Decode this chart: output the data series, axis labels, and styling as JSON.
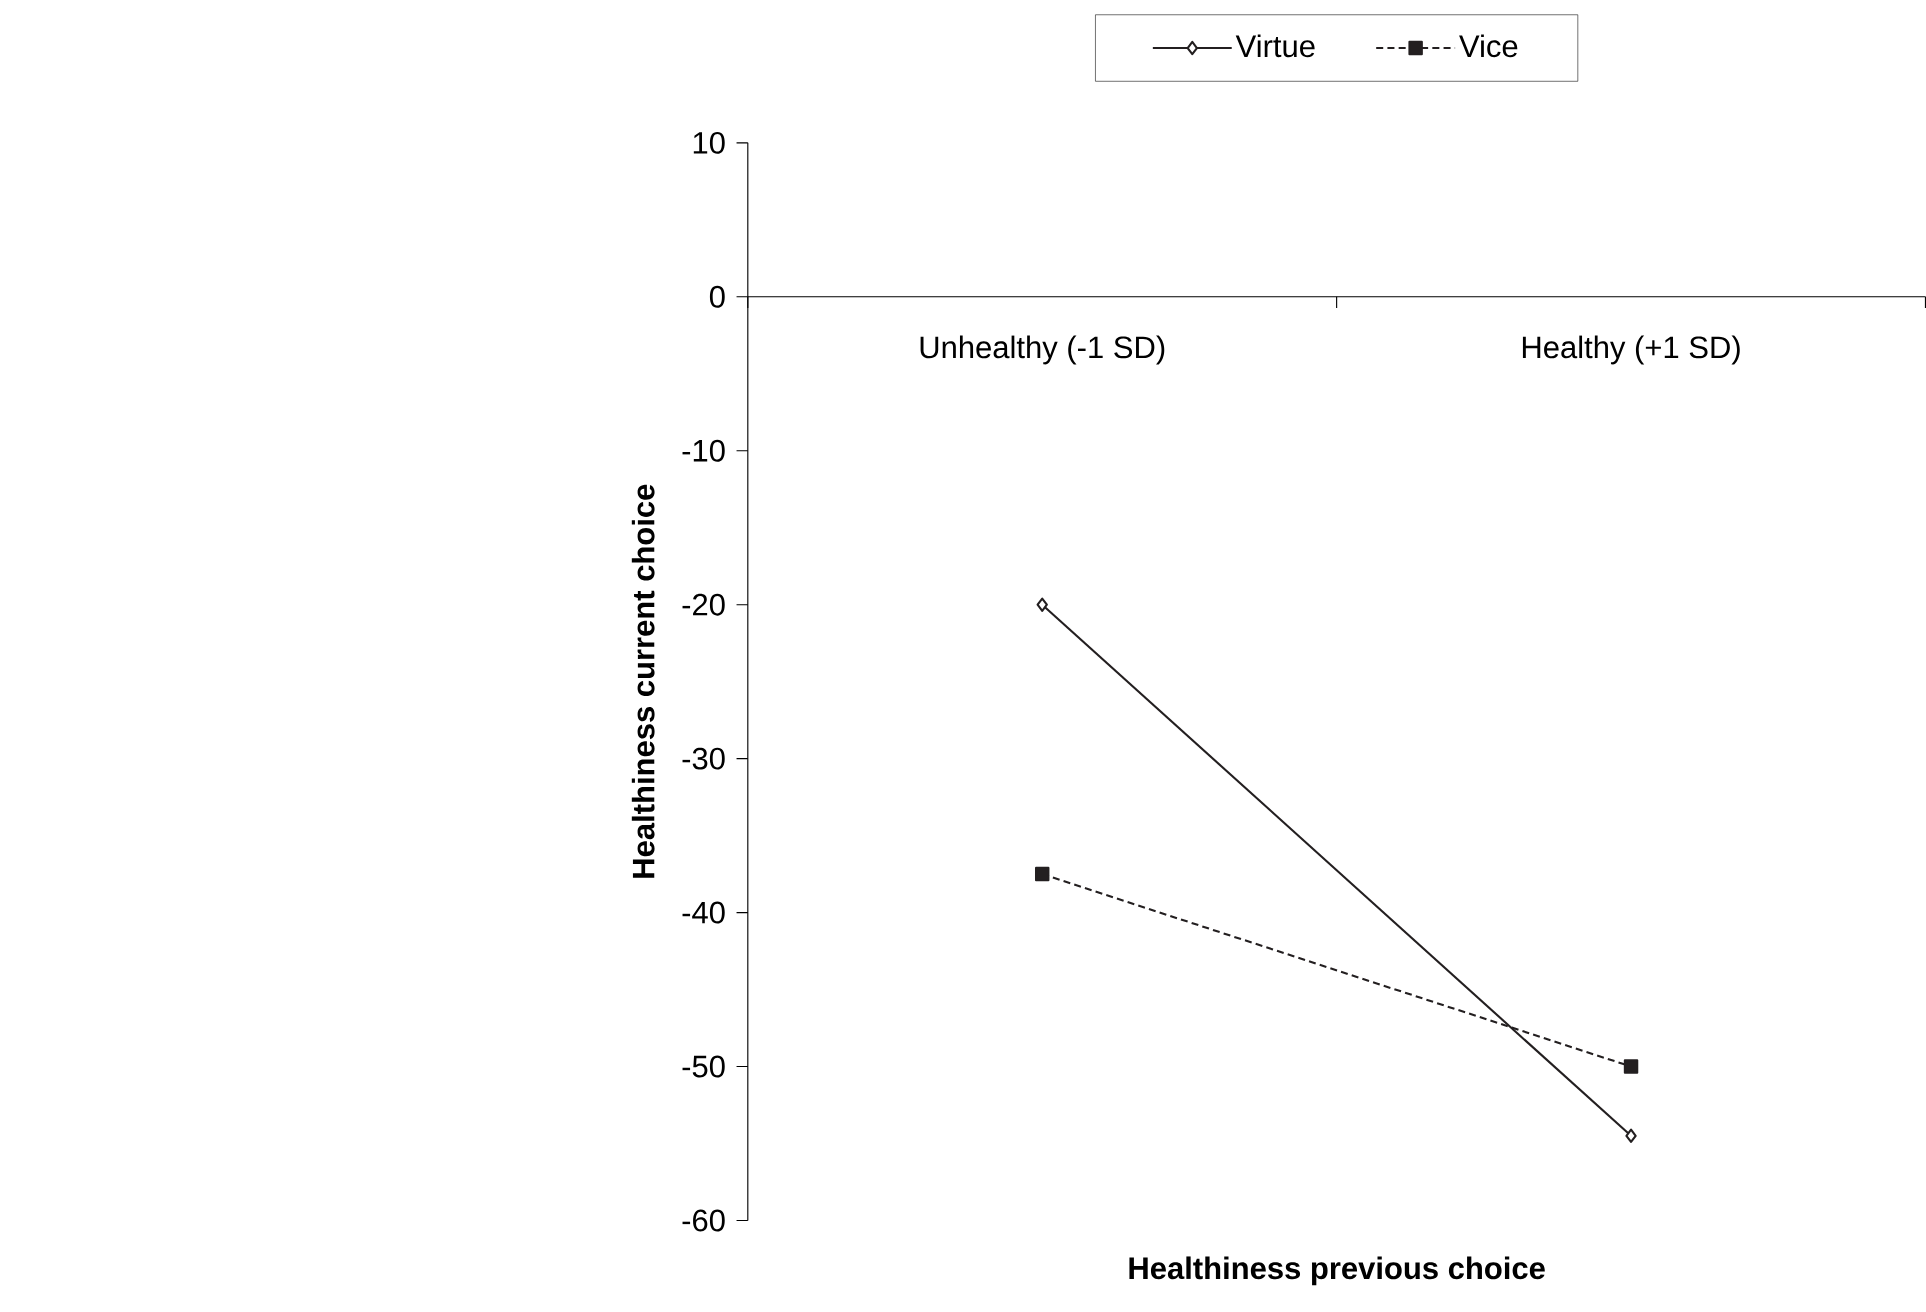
{
  "chart_data": {
    "type": "line",
    "xlabel": "Healthiness previous choice",
    "ylabel": "Healthiness current choice",
    "categories": [
      "Unhealthy (-1 SD)",
      "Healthy (+1 SD)"
    ],
    "series": [
      {
        "name": "Virtue",
        "color": "#231f20",
        "values": [
          -20,
          -54.5
        ],
        "marker": "diamond",
        "line_style": "solid"
      },
      {
        "name": "Vice",
        "color": "#231f20",
        "values": [
          -37.5,
          -50
        ],
        "marker": "square",
        "line_style": "dashed"
      }
    ],
    "ylim": [
      -60,
      10
    ],
    "yticks": [
      -60,
      -50,
      -40,
      -30,
      -20,
      -10,
      0,
      10
    ],
    "grid": false,
    "legend": "top"
  }
}
